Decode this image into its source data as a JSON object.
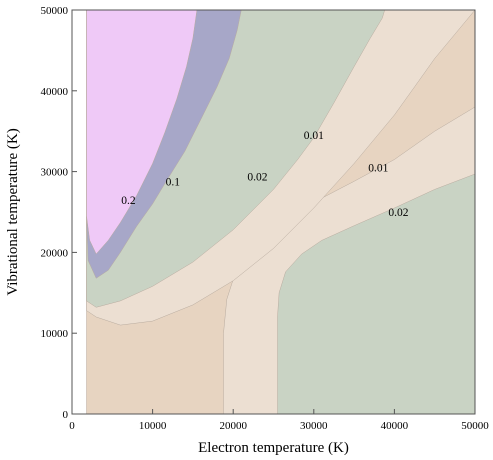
{
  "chart_data": {
    "type": "contour",
    "title": "",
    "xlabel": "Electron temperature (K)",
    "ylabel": "Vibrational temperature (K)",
    "xlim": [
      0,
      50000
    ],
    "ylim": [
      0,
      50000
    ],
    "x_ticks": [
      0,
      10000,
      20000,
      30000,
      40000,
      50000
    ],
    "y_ticks": [
      0,
      10000,
      20000,
      30000,
      40000,
      50000
    ],
    "x_tick_labels": [
      "0",
      "10000",
      "20000",
      "30000",
      "40000",
      "50000"
    ],
    "y_tick_labels": [
      "0",
      "10000",
      "20000",
      "30000",
      "40000",
      "50000"
    ],
    "grid": false,
    "colors": {
      "frame": "#555555",
      "level_top": "#efc9f7",
      "level_purple": "#a7a7c8",
      "level_green": "#c9d3c4",
      "level_beige": "#ecdfd2",
      "level_tan": "#e7d4c1",
      "outline": "#b8ab9f"
    },
    "regions": [
      {
        "fill": "level_tan",
        "points": [
          [
            1800,
            0
          ],
          [
            50000,
            0
          ],
          [
            50000,
            50000
          ],
          [
            1800,
            50000
          ]
        ]
      },
      {
        "fill": "level_beige",
        "points": [
          [
            18800,
            0
          ],
          [
            50000,
            0
          ],
          [
            50000,
            38000
          ],
          [
            45000,
            35000
          ],
          [
            40000,
            31500
          ],
          [
            35000,
            28800
          ],
          [
            30000,
            26200
          ],
          [
            26000,
            24000
          ],
          [
            23000,
            21500
          ],
          [
            20500,
            18200
          ],
          [
            19200,
            14200
          ],
          [
            18800,
            10000
          ]
        ]
      },
      {
        "fill": "level_green",
        "points": [
          [
            25500,
            0
          ],
          [
            50000,
            0
          ],
          [
            50000,
            29700
          ],
          [
            45000,
            27800
          ],
          [
            40000,
            25500
          ],
          [
            35000,
            23300
          ],
          [
            31000,
            21500
          ],
          [
            28500,
            19800
          ],
          [
            26500,
            17600
          ],
          [
            25700,
            15000
          ],
          [
            25500,
            12000
          ]
        ]
      },
      {
        "fill": "level_beige",
        "points": [
          [
            1800,
            12800
          ],
          [
            3000,
            12000
          ],
          [
            6000,
            11000
          ],
          [
            10000,
            11500
          ],
          [
            15000,
            13500
          ],
          [
            20000,
            16500
          ],
          [
            25000,
            20500
          ],
          [
            30000,
            25500
          ],
          [
            35000,
            31000
          ],
          [
            40000,
            37000
          ],
          [
            42500,
            40500
          ],
          [
            45000,
            44000
          ],
          [
            50000,
            50000
          ],
          [
            1800,
            50000
          ]
        ]
      },
      {
        "fill": "level_green",
        "points": [
          [
            1800,
            14000
          ],
          [
            3000,
            13200
          ],
          [
            6000,
            14000
          ],
          [
            10000,
            15800
          ],
          [
            15000,
            18800
          ],
          [
            20000,
            22800
          ],
          [
            25000,
            27800
          ],
          [
            28000,
            31500
          ],
          [
            30000,
            34200
          ],
          [
            32500,
            38500
          ],
          [
            35000,
            43000
          ],
          [
            37000,
            46500
          ],
          [
            38500,
            49000
          ],
          [
            38800,
            50000
          ],
          [
            1800,
            50000
          ]
        ]
      },
      {
        "fill": "level_purple",
        "points": [
          [
            1800,
            24500
          ],
          [
            2000,
            19000
          ],
          [
            3000,
            16800
          ],
          [
            4500,
            17800
          ],
          [
            6000,
            20000
          ],
          [
            8000,
            23200
          ],
          [
            10000,
            26000
          ],
          [
            12000,
            29300
          ],
          [
            14000,
            32500
          ],
          [
            16000,
            36500
          ],
          [
            18000,
            40500
          ],
          [
            19500,
            44000
          ],
          [
            20500,
            47500
          ],
          [
            21000,
            50000
          ],
          [
            1800,
            50000
          ]
        ]
      },
      {
        "fill": "level_top",
        "points": [
          [
            1800,
            24500
          ],
          [
            2200,
            21500
          ],
          [
            3000,
            19800
          ],
          [
            4500,
            21500
          ],
          [
            6000,
            23700
          ],
          [
            8000,
            27000
          ],
          [
            10000,
            31000
          ],
          [
            11500,
            34800
          ],
          [
            13000,
            39000
          ],
          [
            14200,
            43000
          ],
          [
            15000,
            46500
          ],
          [
            15500,
            50000
          ],
          [
            1800,
            50000
          ]
        ]
      }
    ],
    "contour_labels": [
      {
        "text": "0.2",
        "x": 7000,
        "y": 26500
      },
      {
        "text": "0.1",
        "x": 12500,
        "y": 28800
      },
      {
        "text": "0.02",
        "x": 23000,
        "y": 29400
      },
      {
        "text": "0.01",
        "x": 30000,
        "y": 34500
      },
      {
        "text": "0.01",
        "x": 38000,
        "y": 30500
      },
      {
        "text": "0.02",
        "x": 40500,
        "y": 25000
      }
    ]
  }
}
